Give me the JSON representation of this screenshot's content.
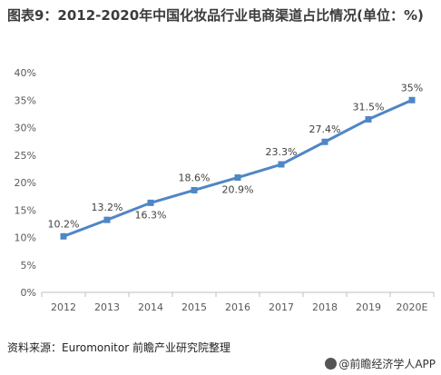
{
  "title": "图表9：2012-2020年中国化妆品行业电商渠道占比情况(单位：%)",
  "source": "资料来源：Euromonitor 前瞻产业研究院整理",
  "brand": "@前瞻经济学人APP",
  "colors": {
    "line": "#4f86c6",
    "grid": "#e0e0e0",
    "axis": "#bfbfbf",
    "text": "#595959"
  },
  "chart_data": {
    "type": "line",
    "categories": [
      "2012",
      "2013",
      "2014",
      "2015",
      "2016",
      "2017",
      "2018",
      "2019",
      "2020E"
    ],
    "values": [
      10.2,
      13.2,
      16.3,
      18.6,
      20.9,
      23.3,
      27.4,
      31.5,
      35
    ],
    "data_labels": [
      "10.2%",
      "13.2%",
      "16.3%",
      "18.6%",
      "20.9%",
      "23.3%",
      "27.4%",
      "31.5%",
      "35%"
    ],
    "yticks": [
      "0%",
      "5%",
      "10%",
      "15%",
      "20%",
      "25%",
      "30%",
      "35%",
      "40%"
    ],
    "ylim": [
      0,
      40
    ],
    "grid": false,
    "legend": "none"
  }
}
